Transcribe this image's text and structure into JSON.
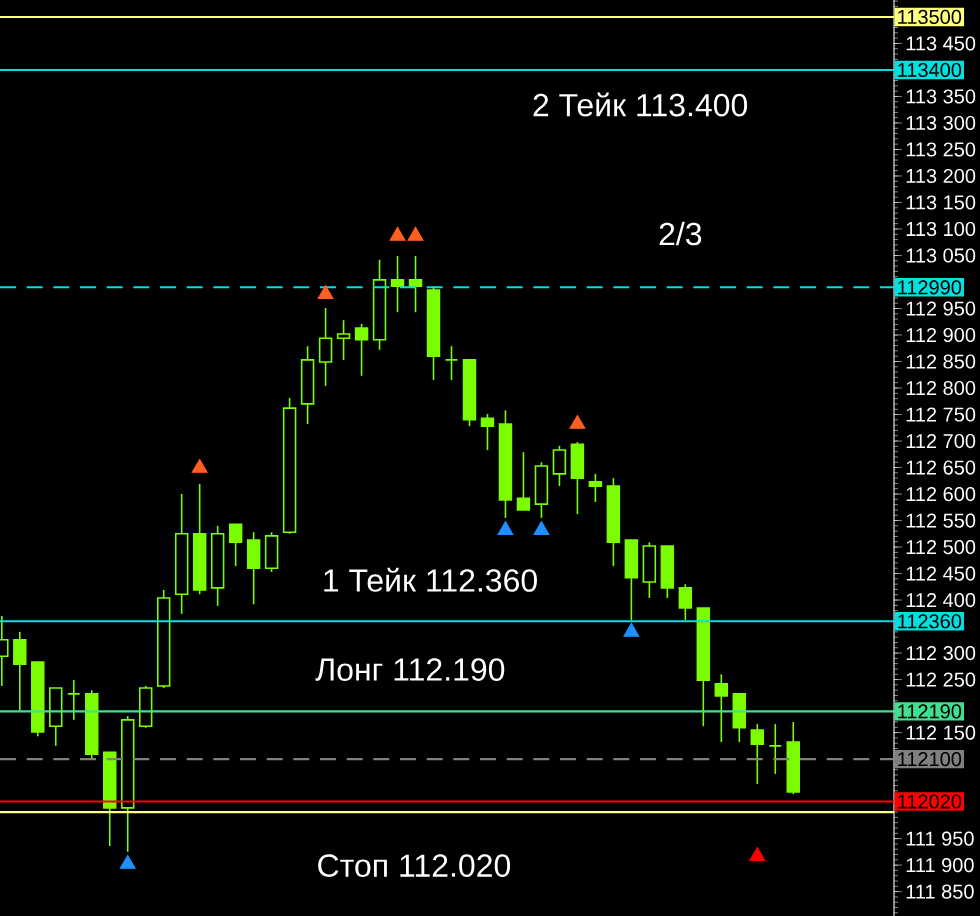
{
  "chart_data": {
    "type": "candlestick",
    "categories": [
      null,
      null,
      null,
      null,
      null,
      null,
      null,
      null,
      null,
      null,
      null,
      null,
      null,
      null,
      null,
      null,
      null,
      null,
      null,
      null,
      null,
      null,
      null,
      null,
      null,
      null,
      null,
      null,
      null,
      null,
      null,
      null,
      null,
      null,
      null,
      null,
      null,
      null,
      null,
      null,
      null,
      null,
      null,
      null,
      null
    ],
    "color": "#7cfc00",
    "ohlc": [
      [
        112294,
        112370,
        112238,
        112325
      ],
      [
        112325,
        112340,
        112192,
        112279
      ],
      [
        112283,
        112283,
        112143,
        112151
      ],
      [
        112162,
        112234,
        112125,
        112234
      ],
      [
        112223,
        112249,
        112174,
        112223
      ],
      [
        112223,
        112230,
        112098,
        112109
      ],
      [
        112113,
        112113,
        111936,
        112008
      ],
      [
        112008,
        112181,
        111925,
        112174
      ],
      [
        112162,
        112238,
        112159,
        112234
      ],
      [
        112238,
        112419,
        112234,
        112404
      ],
      [
        112411,
        112600,
        112374,
        112525
      ],
      [
        112525,
        112619,
        112411,
        112419
      ],
      [
        112423,
        112540,
        112389,
        112525
      ],
      [
        112543,
        112543,
        112464,
        112509
      ],
      [
        112513,
        112528,
        112392,
        112460
      ],
      [
        112460,
        112528,
        112453,
        112521
      ],
      [
        112528,
        112781,
        112525,
        112762
      ],
      [
        112770,
        112879,
        112732,
        112853
      ],
      [
        112849,
        112951,
        112804,
        112894
      ],
      [
        112894,
        112928,
        112853,
        112902
      ],
      [
        112913,
        112921,
        112823,
        112891
      ],
      [
        112891,
        113042,
        112872,
        113004
      ],
      [
        113004,
        113049,
        112943,
        112992
      ],
      [
        113004,
        113049,
        112943,
        112992
      ],
      [
        112985,
        112992,
        112815,
        112860
      ],
      [
        112853,
        112879,
        112815,
        112853
      ],
      [
        112853,
        112853,
        112728,
        112740
      ],
      [
        112743,
        112751,
        112683,
        112728
      ],
      [
        112732,
        112758,
        112555,
        112589
      ],
      [
        112592,
        112679,
        112570,
        112570
      ],
      [
        112581,
        112660,
        112555,
        112653
      ],
      [
        112638,
        112691,
        112615,
        112683
      ],
      [
        112694,
        112698,
        112562,
        112630
      ],
      [
        112623,
        112638,
        112585,
        112615
      ],
      [
        112615,
        112630,
        112464,
        112509
      ],
      [
        112513,
        112513,
        112362,
        112442
      ],
      [
        112434,
        112509,
        112404,
        112502
      ],
      [
        112502,
        112502,
        112404,
        112423
      ],
      [
        112423,
        112430,
        112362,
        112385
      ],
      [
        112385,
        112385,
        112162,
        112249
      ],
      [
        112242,
        112260,
        112132,
        112219
      ],
      [
        112223,
        112223,
        112132,
        112159
      ],
      [
        112155,
        112166,
        112053,
        112128
      ],
      [
        112125,
        112166,
        112072,
        112125
      ],
      [
        112132,
        112170,
        112034,
        112038
      ]
    ],
    "series": [
      {
        "type": "scatter",
        "color": "#ff6020",
        "marker": "triangle",
        "values": [
          null,
          null,
          null,
          null,
          null,
          null,
          null,
          null,
          null,
          null,
          null,
          112649,
          null,
          null,
          null,
          null,
          null,
          null,
          112977,
          null,
          null,
          null,
          113087,
          113087,
          null,
          null,
          null,
          null,
          null,
          null,
          null,
          null,
          112732,
          null,
          null,
          null,
          null,
          null,
          null,
          null,
          null,
          null,
          null,
          null,
          null
        ]
      },
      {
        "type": "scatter",
        "color": "#1e90ff",
        "marker": "triangle",
        "values": [
          null,
          null,
          null,
          null,
          null,
          null,
          null,
          111902,
          null,
          null,
          null,
          null,
          null,
          null,
          null,
          null,
          null,
          null,
          null,
          null,
          null,
          null,
          null,
          null,
          null,
          null,
          null,
          null,
          112532,
          null,
          112532,
          null,
          null,
          null,
          null,
          112340,
          null,
          null,
          null,
          null,
          null,
          null,
          null,
          null,
          null
        ]
      },
      {
        "type": "scatter",
        "color": "#ff0000",
        "marker": "triangle",
        "values": [
          null,
          null,
          null,
          null,
          null,
          null,
          null,
          null,
          null,
          null,
          null,
          null,
          null,
          null,
          null,
          null,
          null,
          null,
          null,
          null,
          null,
          null,
          null,
          null,
          null,
          null,
          null,
          null,
          null,
          null,
          null,
          null,
          null,
          null,
          null,
          null,
          null,
          null,
          null,
          null,
          null,
          null,
          111917,
          null,
          null
        ]
      }
    ],
    "ylim": [
      111804,
      113532
    ],
    "yticks": [
      {
        "value": 113450,
        "label": "113 450"
      },
      {
        "value": 113350,
        "label": "113 350"
      },
      {
        "value": 113300,
        "label": "113 300"
      },
      {
        "value": 113250,
        "label": "113 250"
      },
      {
        "value": 113200,
        "label": "113 200"
      },
      {
        "value": 113150,
        "label": "113 150"
      },
      {
        "value": 113100,
        "label": "113 100"
      },
      {
        "value": 113050,
        "label": "113 050"
      },
      {
        "value": 112950,
        "label": "112 950"
      },
      {
        "value": 112900,
        "label": "112 900"
      },
      {
        "value": 112850,
        "label": "112 850"
      },
      {
        "value": 112800,
        "label": "112 800"
      },
      {
        "value": 112750,
        "label": "112 750"
      },
      {
        "value": 112700,
        "label": "112 700"
      },
      {
        "value": 112650,
        "label": "112 650"
      },
      {
        "value": 112600,
        "label": "112 600"
      },
      {
        "value": 112550,
        "label": "112 550"
      },
      {
        "value": 112500,
        "label": "112 500"
      },
      {
        "value": 112450,
        "label": "112 450"
      },
      {
        "value": 112400,
        "label": "112 400"
      },
      {
        "value": 112300,
        "label": "112 300"
      },
      {
        "value": 112250,
        "label": "112 250"
      },
      {
        "value": 112150,
        "label": "112 150"
      },
      {
        "value": 111950,
        "label": "111 950"
      },
      {
        "value": 111900,
        "label": "111 900"
      },
      {
        "value": 111850,
        "label": "111 850"
      }
    ],
    "tick_labels": "y",
    "ref_lines": [
      {
        "axis": "y",
        "value": 113500,
        "label": "113500",
        "color": "#ffff80",
        "line_style": "solid"
      },
      {
        "axis": "y",
        "value": 113400,
        "label": "113400",
        "color": "#00e0e0",
        "line_style": "solid"
      },
      {
        "axis": "y",
        "value": 112990,
        "label": "112990",
        "color": "#00e0e0",
        "line_style": "dashed"
      },
      {
        "axis": "y",
        "value": 112360,
        "label": "112360",
        "color": "#00e0e0",
        "line_style": "solid"
      },
      {
        "axis": "y",
        "value": 112190,
        "label": "112190",
        "color": "#40e090",
        "line_style": "solid"
      },
      {
        "axis": "y",
        "value": 112100,
        "label": "112100",
        "color": "#808080",
        "line_style": "dashed"
      },
      {
        "axis": "y",
        "value": 112000,
        "label": null,
        "color": "#ffff80",
        "line_style": "solid"
      },
      {
        "axis": "y",
        "value": 112020,
        "label": "112020",
        "color": "#ff0000",
        "line_style": "solid"
      }
    ],
    "annotations": [
      "2 Тейк 113.400",
      "2/3",
      "1 Тейк 112.360",
      "Лонг 112.190",
      "Стоп 112.020"
    ]
  }
}
